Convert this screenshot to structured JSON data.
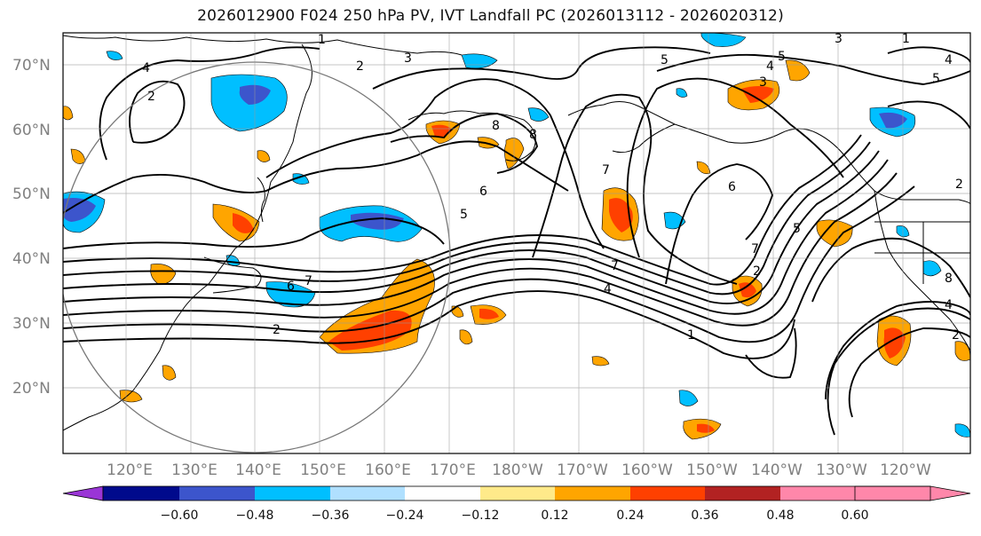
{
  "title": "2026012900 F024 250 hPa PV, IVT Landfall PC (2026013112 - 2026020312)",
  "map": {
    "lat_labels": [
      "70°N",
      "60°N",
      "50°N",
      "40°N",
      "30°N",
      "20°N"
    ],
    "lon_labels": [
      "120°E",
      "130°E",
      "140°E",
      "150°E",
      "160°E",
      "170°E",
      "180°W",
      "170°W",
      "160°W",
      "150°W",
      "140°W",
      "130°W",
      "120°W"
    ],
    "contour_labels": [
      "1",
      "2",
      "3",
      "4",
      "5",
      "6",
      "7",
      "8"
    ]
  },
  "colorbar": {
    "colors": [
      "#9a35d6",
      "#000a8c",
      "#3c55cc",
      "#00bfff",
      "#b0e0ff",
      "#ffffff",
      "#ffea8a",
      "#ffa500",
      "#ff4000",
      "#b22222",
      "#ff87aa"
    ],
    "tick_labels": [
      "−0.60",
      "−0.48",
      "−0.36",
      "−0.24",
      "−0.12",
      "0.12",
      "0.24",
      "0.36",
      "0.48",
      "0.60"
    ]
  }
}
